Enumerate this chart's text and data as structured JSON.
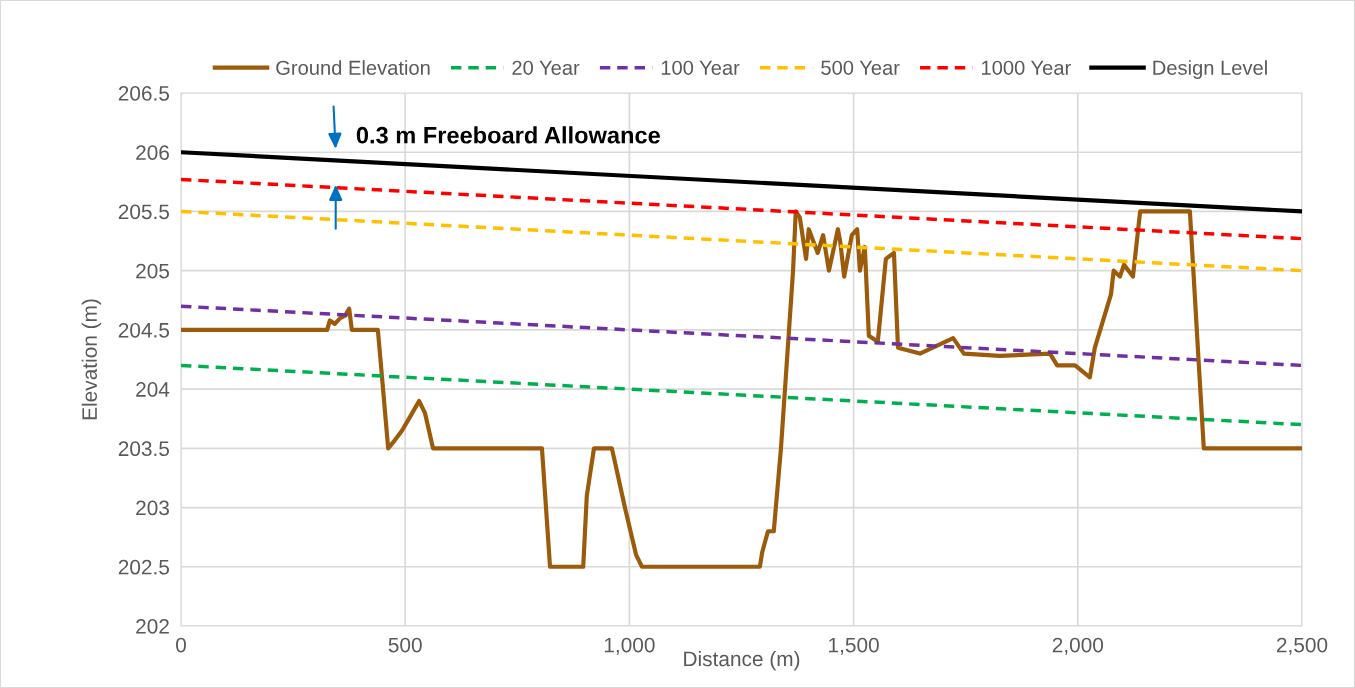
{
  "chart_data": {
    "type": "line",
    "xlabel": "Distance (m)",
    "ylabel": "Elevation (m)",
    "xlim": [
      0,
      2500
    ],
    "ylim": [
      202,
      206.5
    ],
    "xticks": [
      0,
      500,
      {
        "value": 1000,
        "label": "1,000"
      },
      {
        "value": 1500,
        "label": "1,500"
      },
      {
        "value": 2000,
        "label": "2,000"
      },
      {
        "value": 2500,
        "label": "2,500"
      }
    ],
    "yticks": [
      202,
      202.5,
      203,
      203.5,
      204,
      204.5,
      205,
      205.5,
      206,
      206.5
    ],
    "grid": true,
    "legend": "top",
    "marker": "none",
    "series": [
      {
        "name": "Ground Elevation",
        "color": "#9c5b0b",
        "line_style": "solid",
        "x": [
          0,
          326,
          332,
          343,
          355,
          366,
          375,
          381,
          439,
          446,
          462,
          473,
          493,
          513,
          531,
          544,
          562,
          805,
          814,
          823,
          897,
          905,
          921,
          961,
          990,
          1015,
          1028,
          1247,
          1291,
          1296,
          1309,
          1322,
          1338,
          1365,
          1371,
          1380,
          1394,
          1400,
          1420,
          1432,
          1445,
          1465,
          1470,
          1479,
          1496,
          1508,
          1514,
          1525,
          1534,
          1554,
          1572,
          1590,
          1599,
          1648,
          1722,
          1746,
          1826,
          1938,
          1954,
          1994,
          2027,
          2038,
          2074,
          2080,
          2094,
          2103,
          2123,
          2139,
          2250,
          2270,
          2281,
          2500
        ],
        "values": [
          204.5,
          204.5,
          204.58,
          204.55,
          204.6,
          204.62,
          204.68,
          204.5,
          204.5,
          204.2,
          203.5,
          203.55,
          203.65,
          203.78,
          203.9,
          203.8,
          203.5,
          203.5,
          203.0,
          202.5,
          202.5,
          203.1,
          203.5,
          203.5,
          203.0,
          202.6,
          202.5,
          202.5,
          202.5,
          202.62,
          202.8,
          202.8,
          203.5,
          205.0,
          205.5,
          205.45,
          205.1,
          205.35,
          205.15,
          205.3,
          205.0,
          205.35,
          205.25,
          204.95,
          205.3,
          205.35,
          205.0,
          205.2,
          204.45,
          204.4,
          205.1,
          205.15,
          204.35,
          204.3,
          204.43,
          204.3,
          204.28,
          204.3,
          204.2,
          204.2,
          204.1,
          204.35,
          204.8,
          205.0,
          204.95,
          205.05,
          204.95,
          205.5,
          205.5,
          204.2,
          203.5,
          203.5
        ]
      },
      {
        "name": "20 Year",
        "color": "#00b050",
        "line_style": "dashed",
        "x": [
          0,
          2500
        ],
        "values": [
          204.2,
          203.7
        ]
      },
      {
        "name": "100 Year",
        "color": "#7030a0",
        "line_style": "dashed",
        "x": [
          0,
          2500
        ],
        "values": [
          204.7,
          204.2
        ]
      },
      {
        "name": "500 Year",
        "color": "#ffc000",
        "line_style": "dashed",
        "x": [
          0,
          2500
        ],
        "values": [
          205.5,
          205.0
        ]
      },
      {
        "name": "1000 Year",
        "color": "#ff0000",
        "line_style": "dashed",
        "x": [
          0,
          2500
        ],
        "values": [
          205.77,
          205.27
        ]
      },
      {
        "name": "Design Level",
        "color": "#000000",
        "line_style": "solid",
        "x": [
          0,
          2500
        ],
        "values": [
          206.0,
          205.5
        ]
      }
    ],
    "annotations": [
      "0.3 m Freeboard Allowance"
    ]
  }
}
